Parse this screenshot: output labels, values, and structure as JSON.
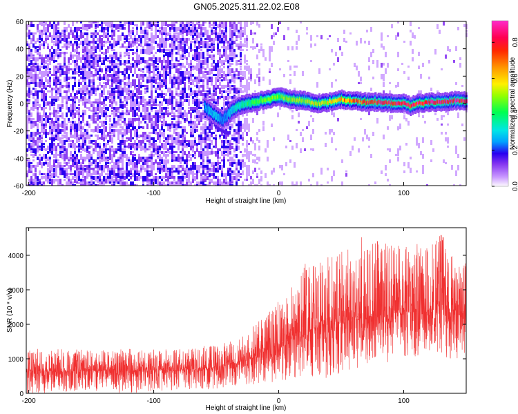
{
  "title": "GN05.2025.311.22.02.E08",
  "colorbar": {
    "label": "Normalized spectral amplitude",
    "ticks": [
      "0.0",
      "0.2",
      "0.4",
      "0.6",
      "0.8"
    ],
    "range": [
      0,
      0.92
    ]
  },
  "chart_data": [
    {
      "type": "heatmap",
      "name": "spectrogram",
      "xlabel": "Height of straight line (km)",
      "ylabel": "Frequency (Hz)",
      "xlim": [
        -202,
        150
      ],
      "ylim": [
        -60,
        60
      ],
      "xticks": [
        -200,
        -100,
        0,
        100
      ],
      "xtick_labels": [
        "-200",
        "-100",
        "0",
        "100"
      ],
      "yticks": [
        -60,
        -40,
        -20,
        0,
        20,
        40,
        60
      ],
      "ytick_labels": [
        "-60",
        "-40",
        "-20",
        "0",
        "20",
        "40",
        "60"
      ],
      "ridge": {
        "x": [
          -60,
          -55,
          -50,
          -45,
          -40,
          -35,
          -30,
          -25,
          -20,
          -15,
          -10,
          -5,
          0,
          10,
          20,
          30,
          40,
          50,
          60,
          70,
          80,
          90,
          100,
          105,
          110,
          120,
          130,
          140,
          150
        ],
        "freq": [
          -2,
          -6,
          -9,
          -12,
          -7,
          -3,
          -1,
          0,
          1,
          2,
          3,
          4,
          5,
          3,
          2,
          0,
          1,
          3,
          2,
          1,
          1,
          0,
          0,
          -2,
          0,
          1,
          1,
          2,
          2
        ],
        "amplitude": [
          0.25,
          0.3,
          0.3,
          0.25,
          0.3,
          0.35,
          0.4,
          0.45,
          0.45,
          0.5,
          0.5,
          0.5,
          0.5,
          0.55,
          0.55,
          0.6,
          0.6,
          0.7,
          0.75,
          0.8,
          0.85,
          0.9,
          0.92,
          0.85,
          0.9,
          0.9,
          0.9,
          0.9,
          0.9
        ]
      },
      "branch": {
        "x": [
          -60,
          -55,
          -50,
          -45,
          -40
        ],
        "freq": [
          -6,
          -12,
          -17,
          -20,
          -21
        ],
        "amplitude": [
          0.1,
          0.1,
          0.08,
          0.06,
          0.05
        ]
      }
    },
    {
      "type": "line",
      "name": "snr",
      "xlabel": "Height of straight line (km)",
      "ylabel": "SNR (10 * v/v)",
      "xlim": [
        -202,
        150
      ],
      "ylim": [
        0,
        4800
      ],
      "xticks": [
        -200,
        -100,
        0,
        100
      ],
      "xtick_labels": [
        "-200",
        "-100",
        "0",
        "100"
      ],
      "yticks": [
        0,
        1000,
        2000,
        3000,
        4000
      ],
      "ytick_labels": [
        "0",
        "1000",
        "2000",
        "3000",
        "4000"
      ],
      "color": "#f03030",
      "series": [
        {
          "name": "SNR envelope",
          "x": [
            -202,
            -180,
            -150,
            -120,
            -100,
            -80,
            -60,
            -45,
            -30,
            -20,
            -10,
            0,
            10,
            20,
            30,
            40,
            50,
            60,
            70,
            80,
            90,
            100,
            110,
            120,
            130,
            140,
            150
          ],
          "mean": [
            650,
            640,
            650,
            660,
            670,
            680,
            720,
            780,
            900,
            1050,
            1250,
            1450,
            1650,
            1800,
            1900,
            2000,
            2100,
            2150,
            2200,
            2250,
            2300,
            2350,
            2350,
            2400,
            2450,
            2400,
            2350
          ],
          "high": [
            1250,
            1300,
            1250,
            1300,
            1250,
            1300,
            1350,
            1450,
            1600,
            2000,
            2300,
            2600,
            2900,
            3600,
            3800,
            4000,
            4100,
            4200,
            4500,
            4400,
            4300,
            4300,
            4100,
            4400,
            4700,
            4200,
            3800
          ],
          "low": [
            0,
            0,
            50,
            0,
            50,
            100,
            100,
            150,
            200,
            250,
            300,
            350,
            400,
            450,
            500,
            400,
            600,
            700,
            800,
            850,
            900,
            1000,
            1000,
            1100,
            1100,
            800,
            1000
          ]
        }
      ]
    }
  ]
}
